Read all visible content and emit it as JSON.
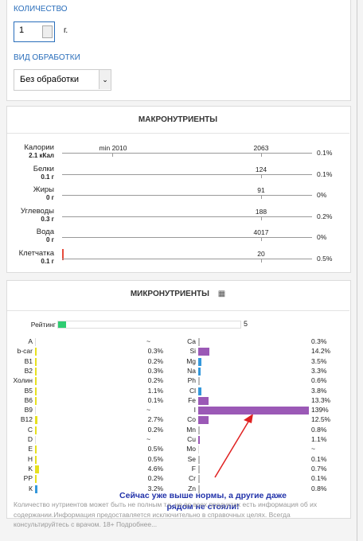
{
  "quantity": {
    "label": "КОЛИЧЕСТВО",
    "value": "1",
    "unit": "г."
  },
  "processing": {
    "label": "ВИД ОБРАБОТКИ",
    "value": "Без обработки"
  },
  "macro": {
    "title": "МАКРОНУТРИЕНТЫ",
    "rows": [
      {
        "name": "Калории",
        "amount": "2.1 кКал",
        "min": "min 2010",
        "norm": 2063,
        "percent": "0.1%"
      },
      {
        "name": "Белки",
        "amount": "0.1 г",
        "norm": 124,
        "percent": "0.1%"
      },
      {
        "name": "Жиры",
        "amount": "0 г",
        "norm": 91,
        "percent": "0%"
      },
      {
        "name": "Углеводы",
        "amount": "0.3 г",
        "norm": 188,
        "percent": "0.2%"
      },
      {
        "name": "Вода",
        "amount": "0 г",
        "norm": 4017,
        "percent": "0%"
      },
      {
        "name": "Клетчатка",
        "amount": "0.1 г",
        "norm": 20,
        "percent": "0.5%"
      }
    ]
  },
  "micro": {
    "title": "МИКРОНУТРИЕНТЫ",
    "rating": {
      "label": "Рейтинг",
      "value": 5,
      "color": "#2ecc71"
    },
    "left": [
      {
        "name": "A",
        "label": "~",
        "value": null
      },
      {
        "name": "b-car",
        "label": "0.3%",
        "value": 0.3,
        "color": "#e6e020"
      },
      {
        "name": "B1",
        "label": "0.2%",
        "value": 0.2,
        "color": "#e6e020"
      },
      {
        "name": "B2",
        "label": "0.3%",
        "value": 0.3,
        "color": "#e6e020"
      },
      {
        "name": "Холин",
        "label": "0.2%",
        "value": 0.2,
        "color": "#e6e020"
      },
      {
        "name": "B5",
        "label": "1.1%",
        "value": 1.1,
        "color": "#e6e020"
      },
      {
        "name": "B6",
        "label": "0.1%",
        "value": 0.1,
        "color": "#e6e020"
      },
      {
        "name": "B9",
        "label": "~",
        "value": null
      },
      {
        "name": "B12",
        "label": "2.7%",
        "value": 2.7,
        "color": "#e6e020"
      },
      {
        "name": "C",
        "label": "0.2%",
        "value": 0.2,
        "color": "#e6e020"
      },
      {
        "name": "D",
        "label": "~",
        "value": null
      },
      {
        "name": "E",
        "label": "0.5%",
        "value": 0.5,
        "color": "#e6e020"
      },
      {
        "name": "H",
        "label": "0.5%",
        "value": 0.5,
        "color": "#e6e020"
      },
      {
        "name": "K",
        "label": "4.6%",
        "value": 4.6,
        "color": "#e6e020"
      },
      {
        "name": "PP",
        "label": "0.2%",
        "value": 0.2,
        "color": "#e6e020"
      },
      {
        "name": "К",
        "label": "3.2%",
        "value": 3.2,
        "color": "#3498db"
      }
    ],
    "right": [
      {
        "name": "Ca",
        "label": "0.3%",
        "value": 0.3,
        "color": "#bbbbbb"
      },
      {
        "name": "Si",
        "label": "14.2%",
        "value": 14.2,
        "color": "#9b59b6"
      },
      {
        "name": "Mg",
        "label": "3.5%",
        "value": 3.5,
        "color": "#3498db"
      },
      {
        "name": "Na",
        "label": "3.3%",
        "value": 3.3,
        "color": "#3498db"
      },
      {
        "name": "Ph",
        "label": "0.6%",
        "value": 0.6,
        "color": "#bbbbbb"
      },
      {
        "name": "Cl",
        "label": "3.8%",
        "value": 3.8,
        "color": "#3498db"
      },
      {
        "name": "Fe",
        "label": "13.3%",
        "value": 13.3,
        "color": "#9b59b6"
      },
      {
        "name": "I",
        "label": "139%",
        "value": 139,
        "color": "#9b59b6"
      },
      {
        "name": "Co",
        "label": "12.5%",
        "value": 12.5,
        "color": "#9b59b6"
      },
      {
        "name": "Mn",
        "label": "0.8%",
        "value": 0.8,
        "color": "#bbbbbb"
      },
      {
        "name": "Cu",
        "label": "1.1%",
        "value": 1.1,
        "color": "#9b59b6"
      },
      {
        "name": "Mo",
        "label": "~",
        "value": null
      },
      {
        "name": "Se",
        "label": "0.1%",
        "value": 0.1,
        "color": "#bbbbbb"
      },
      {
        "name": "F",
        "label": "0.7%",
        "value": 0.7,
        "color": "#bbbbbb"
      },
      {
        "name": "Cr",
        "label": "0.1%",
        "value": 0.1,
        "color": "#bbbbbb"
      },
      {
        "name": "Zn",
        "label": "0.8%",
        "value": 0.8,
        "color": "#bbbbbb"
      }
    ]
  },
  "annotation": "Сейчас уже выше нормы, а другие даже рядом не стояли!",
  "footer": "Количество нутриентов может быть не полным т.к. не во всех продуктах есть информация об их содержании.Информация предоставляется исключительно в справочных целях. Всегда консультируйтесь с врачом. 18+ Подробнее..."
}
